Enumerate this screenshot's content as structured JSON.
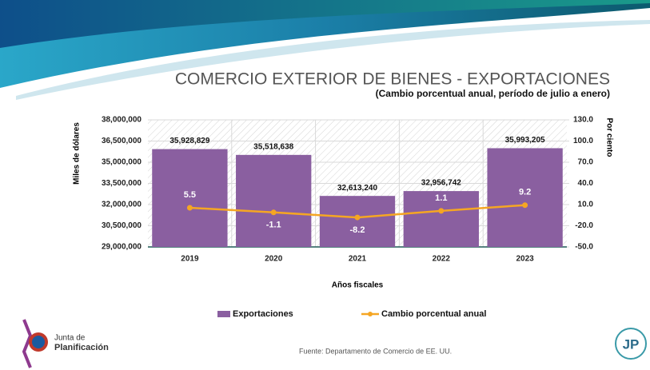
{
  "chart_data": {
    "type": "bar",
    "title": "COMERCIO EXTERIOR DE BIENES - EXPORTACIONES",
    "subtitle": "(Cambio porcentual anual, período de julio a enero)",
    "y_label": "Miles de dólares",
    "y2_label": "Por ciento",
    "x_label": "Años fiscales",
    "categories": [
      "2019",
      "2020",
      "2021",
      "2022",
      "2023"
    ],
    "series": [
      {
        "name": "Exportaciones",
        "type": "bar",
        "color": "#8a5fa0",
        "values": [
          35928829,
          35518638,
          32613240,
          32956742,
          35993205
        ],
        "value_labels": [
          "35,928,829",
          "35,518,638",
          "32,613,240",
          "32,956,742",
          "35,993,205"
        ]
      },
      {
        "name": "Cambio porcentual anual",
        "type": "line",
        "axis": "y2",
        "color": "#f5a623",
        "values": [
          5.5,
          -1.1,
          -8.2,
          1.1,
          9.2
        ]
      }
    ],
    "ylim": [
      29000000,
      38000000
    ],
    "yticks": [
      {
        "value": 29000000,
        "label": "29,000,000"
      },
      {
        "value": 30500000,
        "label": "30,500,000"
      },
      {
        "value": 32000000,
        "label": "32,000,000"
      },
      {
        "value": 33500000,
        "label": "33,500,000"
      },
      {
        "value": 35000000,
        "label": "35,000,000"
      },
      {
        "value": 36500000,
        "label": "36,500,000"
      },
      {
        "value": 38000000,
        "label": "38,000,000"
      }
    ],
    "y2lim": [
      -50,
      130
    ],
    "y2ticks": [
      {
        "value": -50,
        "label": "-50.0"
      },
      {
        "value": -20,
        "label": "-20.0"
      },
      {
        "value": 10,
        "label": "10.0"
      },
      {
        "value": 40,
        "label": "40.0"
      },
      {
        "value": 70,
        "label": "70.0"
      },
      {
        "value": 100,
        "label": "100.0"
      },
      {
        "value": 130,
        "label": "130.0"
      }
    ],
    "grid": true,
    "legend": "bottom"
  },
  "footer": {
    "source": "Fuente: Departamento de Comercio de EE. UU.",
    "logo_text": [
      "Junta de",
      "Planificación"
    ],
    "jp_logo": "JP"
  }
}
